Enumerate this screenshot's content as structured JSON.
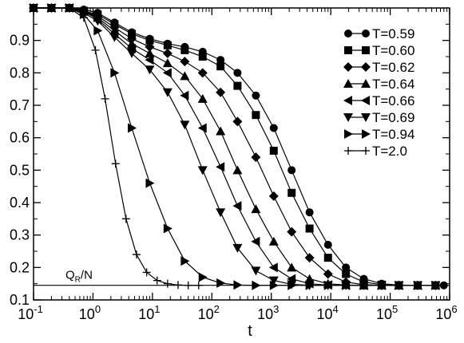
{
  "chart_data": {
    "type": "line",
    "title": "",
    "xlabel": "t",
    "ylabel": "",
    "xscale": "log",
    "xlim": [
      0.1,
      1000000
    ],
    "ylim": [
      0.1,
      1.0
    ],
    "grid": false,
    "legend_position": "top-right",
    "x_tick_labels": [
      {
        "base": "10",
        "exp": "-1"
      },
      {
        "base": "10",
        "exp": "0"
      },
      {
        "base": "10",
        "exp": "1"
      },
      {
        "base": "10",
        "exp": "2"
      },
      {
        "base": "10",
        "exp": "3"
      },
      {
        "base": "10",
        "exp": "4"
      },
      {
        "base": "10",
        "exp": "5"
      },
      {
        "base": "10",
        "exp": "6"
      }
    ],
    "y_tick_labels": [
      "0.1",
      "0.2",
      "0.3",
      "0.4",
      "0.5",
      "0.6",
      "0.7",
      "0.8",
      "0.9"
    ],
    "reference_line": {
      "y": 0.145,
      "label_main": "Q",
      "label_sub": "R",
      "label_rest": "/N"
    },
    "series": [
      {
        "name": "T=0.59",
        "marker": "circle",
        "points": [
          [
            0.1,
            1.0
          ],
          [
            0.2,
            1.0
          ],
          [
            0.4,
            1.0
          ],
          [
            0.7,
            0.995
          ],
          [
            1.2,
            0.985
          ],
          [
            2.3,
            0.955
          ],
          [
            4.5,
            0.925
          ],
          [
            9,
            0.905
          ],
          [
            18,
            0.89
          ],
          [
            35,
            0.88
          ],
          [
            70,
            0.865
          ],
          [
            140,
            0.84
          ],
          [
            270,
            0.8
          ],
          [
            550,
            0.73
          ],
          [
            1100,
            0.63
          ],
          [
            2200,
            0.5
          ],
          [
            4400,
            0.37
          ],
          [
            9000,
            0.27
          ],
          [
            18000,
            0.2
          ],
          [
            36000,
            0.165
          ],
          [
            72000,
            0.15
          ],
          [
            140000,
            0.146
          ],
          [
            290000,
            0.145
          ],
          [
            580000,
            0.145
          ],
          [
            800000,
            0.145
          ]
        ]
      },
      {
        "name": "T=0.60",
        "marker": "square",
        "points": [
          [
            0.1,
            1.0
          ],
          [
            0.2,
            1.0
          ],
          [
            0.4,
            1.0
          ],
          [
            0.7,
            0.99
          ],
          [
            1.2,
            0.98
          ],
          [
            2.3,
            0.95
          ],
          [
            4.5,
            0.92
          ],
          [
            9,
            0.9
          ],
          [
            18,
            0.885
          ],
          [
            35,
            0.87
          ],
          [
            70,
            0.85
          ],
          [
            140,
            0.82
          ],
          [
            270,
            0.76
          ],
          [
            550,
            0.67
          ],
          [
            1100,
            0.56
          ],
          [
            2200,
            0.43
          ],
          [
            4400,
            0.32
          ],
          [
            9000,
            0.23
          ],
          [
            18000,
            0.18
          ],
          [
            36000,
            0.155
          ],
          [
            72000,
            0.147
          ],
          [
            140000,
            0.145
          ],
          [
            290000,
            0.145
          ],
          [
            580000,
            0.145
          ]
        ]
      },
      {
        "name": "T=0.62",
        "marker": "diamond",
        "points": [
          [
            0.1,
            1.0
          ],
          [
            0.2,
            1.0
          ],
          [
            0.4,
            1.0
          ],
          [
            0.7,
            0.99
          ],
          [
            1.2,
            0.975
          ],
          [
            2.3,
            0.94
          ],
          [
            4.5,
            0.905
          ],
          [
            9,
            0.88
          ],
          [
            18,
            0.86
          ],
          [
            35,
            0.835
          ],
          [
            70,
            0.8
          ],
          [
            140,
            0.74
          ],
          [
            270,
            0.65
          ],
          [
            550,
            0.54
          ],
          [
            1100,
            0.42
          ],
          [
            2200,
            0.31
          ],
          [
            4400,
            0.23
          ],
          [
            9000,
            0.18
          ],
          [
            18000,
            0.155
          ],
          [
            36000,
            0.147
          ],
          [
            72000,
            0.145
          ],
          [
            140000,
            0.145
          ],
          [
            290000,
            0.145
          ],
          [
            580000,
            0.145
          ]
        ]
      },
      {
        "name": "T=0.64",
        "marker": "triangle-up",
        "points": [
          [
            0.1,
            1.0
          ],
          [
            0.2,
            1.0
          ],
          [
            0.4,
            1.0
          ],
          [
            0.7,
            0.99
          ],
          [
            1.2,
            0.97
          ],
          [
            2.3,
            0.93
          ],
          [
            4.5,
            0.89
          ],
          [
            9,
            0.86
          ],
          [
            18,
            0.83
          ],
          [
            35,
            0.79
          ],
          [
            70,
            0.72
          ],
          [
            140,
            0.62
          ],
          [
            270,
            0.5
          ],
          [
            550,
            0.38
          ],
          [
            1100,
            0.28
          ],
          [
            2200,
            0.2
          ],
          [
            4400,
            0.165
          ],
          [
            9000,
            0.15
          ],
          [
            18000,
            0.146
          ],
          [
            36000,
            0.145
          ],
          [
            72000,
            0.145
          ],
          [
            140000,
            0.145
          ],
          [
            290000,
            0.145
          ],
          [
            580000,
            0.145
          ]
        ]
      },
      {
        "name": "T=0.66",
        "marker": "triangle-left",
        "points": [
          [
            0.1,
            1.0
          ],
          [
            0.2,
            1.0
          ],
          [
            0.4,
            1.0
          ],
          [
            0.7,
            0.99
          ],
          [
            1.2,
            0.965
          ],
          [
            2.3,
            0.92
          ],
          [
            4.5,
            0.875
          ],
          [
            9,
            0.84
          ],
          [
            18,
            0.8
          ],
          [
            35,
            0.73
          ],
          [
            70,
            0.63
          ],
          [
            140,
            0.51
          ],
          [
            270,
            0.39
          ],
          [
            550,
            0.28
          ],
          [
            1100,
            0.2
          ],
          [
            2200,
            0.165
          ],
          [
            4400,
            0.15
          ],
          [
            9000,
            0.146
          ],
          [
            18000,
            0.145
          ],
          [
            36000,
            0.145
          ],
          [
            72000,
            0.145
          ],
          [
            140000,
            0.145
          ],
          [
            290000,
            0.145
          ],
          [
            580000,
            0.145
          ]
        ]
      },
      {
        "name": "T=0.69",
        "marker": "triangle-down",
        "points": [
          [
            0.1,
            1.0
          ],
          [
            0.2,
            1.0
          ],
          [
            0.4,
            1.0
          ],
          [
            0.7,
            0.985
          ],
          [
            1.2,
            0.96
          ],
          [
            2.3,
            0.91
          ],
          [
            4.5,
            0.86
          ],
          [
            9,
            0.81
          ],
          [
            18,
            0.74
          ],
          [
            35,
            0.64
          ],
          [
            70,
            0.5
          ],
          [
            140,
            0.37
          ],
          [
            270,
            0.26
          ],
          [
            550,
            0.19
          ],
          [
            1100,
            0.16
          ],
          [
            2200,
            0.148
          ],
          [
            4400,
            0.145
          ],
          [
            9000,
            0.145
          ],
          [
            18000,
            0.145
          ],
          [
            36000,
            0.145
          ],
          [
            72000,
            0.145
          ],
          [
            140000,
            0.145
          ],
          [
            290000,
            0.145
          ],
          [
            580000,
            0.145
          ]
        ]
      },
      {
        "name": "T=0.94",
        "marker": "triangle-right",
        "points": [
          [
            0.1,
            1.0
          ],
          [
            0.2,
            1.0
          ],
          [
            0.4,
            1.0
          ],
          [
            0.7,
            0.98
          ],
          [
            1.2,
            0.93
          ],
          [
            2.3,
            0.8
          ],
          [
            4.5,
            0.63
          ],
          [
            9,
            0.46
          ],
          [
            18,
            0.32
          ],
          [
            35,
            0.22
          ],
          [
            70,
            0.17
          ],
          [
            140,
            0.152
          ],
          [
            270,
            0.146
          ],
          [
            550,
            0.145
          ],
          [
            1100,
            0.145
          ],
          [
            2200,
            0.145
          ],
          [
            4400,
            0.145
          ],
          [
            9000,
            0.145
          ],
          [
            18000,
            0.145
          ],
          [
            36000,
            0.145
          ],
          [
            72000,
            0.145
          ],
          [
            140000,
            0.145
          ],
          [
            290000,
            0.145
          ],
          [
            580000,
            0.145
          ]
        ]
      },
      {
        "name": "T=2.0",
        "marker": "plus",
        "points": [
          [
            0.1,
            1.0
          ],
          [
            0.2,
            1.0
          ],
          [
            0.4,
            1.0
          ],
          [
            0.7,
            0.97
          ],
          [
            1.1,
            0.87
          ],
          [
            1.6,
            0.72
          ],
          [
            2.4,
            0.52
          ],
          [
            3.6,
            0.35
          ],
          [
            5.4,
            0.24
          ],
          [
            8,
            0.185
          ],
          [
            12,
            0.16
          ],
          [
            18,
            0.15
          ],
          [
            27,
            0.146
          ],
          [
            40,
            0.145
          ],
          [
            60,
            0.145
          ]
        ]
      }
    ]
  }
}
